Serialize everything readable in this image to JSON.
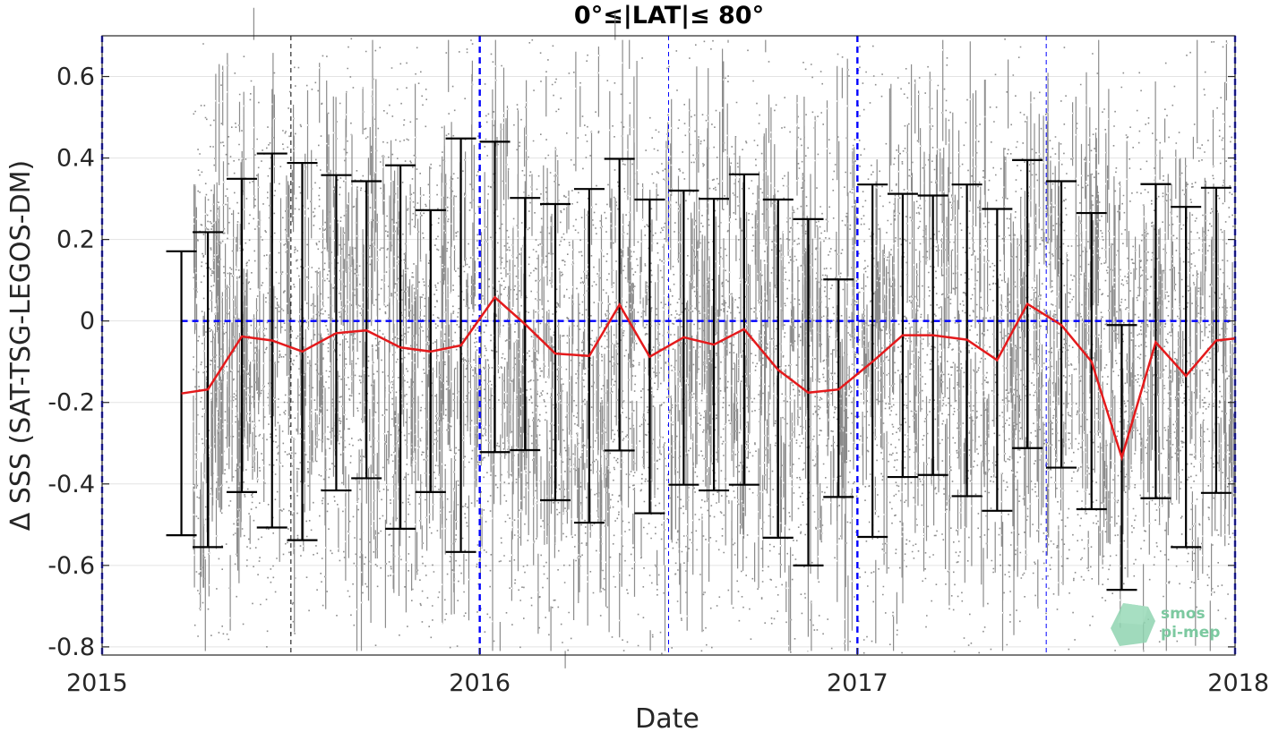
{
  "chart_data": {
    "type": "line",
    "title": "0°≤|LAT|≤ 80°",
    "xlabel": "Date",
    "ylabel": "Δ SSS (SAT-TSG-LEGOS-DM)",
    "xlim": [
      2015.0,
      2018.0
    ],
    "ylim": [
      -0.82,
      0.7
    ],
    "xticks": [
      2015,
      2016,
      2017,
      2018
    ],
    "xtick_labels": [
      "2015",
      "2016",
      "2017",
      "2018"
    ],
    "yticks": [
      0.6,
      0.4,
      0.2,
      0,
      -0.2,
      -0.4,
      -0.6,
      -0.8
    ],
    "ytick_labels": [
      "0.6",
      "0.4",
      "0.2",
      "0",
      "-0.2",
      "-0.4",
      "-0.6",
      "-0.8"
    ],
    "grid": true,
    "scatter": {
      "description_color": "#808080",
      "x_start": 2015.24,
      "x_end": 2018.0
    },
    "series": [
      {
        "color": "#e41a1c",
        "x": [
          2015.21,
          2015.28,
          2015.37,
          2015.45,
          2015.53,
          2015.62,
          2015.7,
          2015.79,
          2015.87,
          2015.95,
          2016.04,
          2016.12,
          2016.2,
          2016.29,
          2016.37,
          2016.45,
          2016.54,
          2016.62,
          2016.7,
          2016.79,
          2016.87,
          2016.95,
          2017.04,
          2017.12,
          2017.2,
          2017.29,
          2017.37,
          2017.45,
          2017.54,
          2017.62,
          2017.7,
          2017.79,
          2017.87,
          2017.95
        ],
        "y": [
          -0.178,
          -0.168,
          -0.038,
          -0.048,
          -0.075,
          -0.03,
          -0.023,
          -0.065,
          -0.075,
          -0.06,
          0.058,
          -0.008,
          -0.08,
          -0.086,
          0.04,
          -0.088,
          -0.04,
          -0.058,
          -0.02,
          -0.12,
          -0.176,
          -0.168,
          -0.1,
          -0.035,
          -0.035,
          -0.046,
          -0.096,
          0.042,
          -0.01,
          -0.1,
          -0.335,
          -0.052,
          -0.135,
          -0.048
        ],
        "lower": [
          -0.526,
          -0.555,
          -0.42,
          -0.507,
          -0.538,
          -0.416,
          -0.386,
          -0.51,
          -0.42,
          -0.567,
          -0.322,
          -0.317,
          -0.44,
          -0.495,
          -0.318,
          -0.472,
          -0.402,
          -0.416,
          -0.402,
          -0.532,
          -0.6,
          -0.432,
          -0.53,
          -0.383,
          -0.378,
          -0.43,
          -0.466,
          -0.312,
          -0.36,
          -0.462,
          -0.66,
          -0.435,
          -0.555,
          -0.422
        ],
        "upper": [
          0.171,
          0.218,
          0.349,
          0.411,
          0.388,
          0.358,
          0.343,
          0.382,
          0.272,
          0.448,
          0.44,
          0.302,
          0.287,
          0.324,
          0.398,
          0.298,
          0.32,
          0.3,
          0.36,
          0.298,
          0.25,
          0.102,
          0.335,
          0.312,
          0.308,
          0.335,
          0.275,
          0.395,
          0.343,
          0.265,
          -0.01,
          0.336,
          0.28,
          0.327
        ]
      }
    ],
    "reference_lines": {
      "zero_line": 0,
      "major_vertical": [
        2015,
        2016,
        2017,
        2018
      ],
      "minor_vertical": [
        2015.5,
        2016.5,
        2017.5
      ]
    },
    "reference_color": "#0000ff",
    "errorbar_color": "#000000"
  },
  "logo": {
    "line1": "smos",
    "line2": "pi-mep"
  }
}
